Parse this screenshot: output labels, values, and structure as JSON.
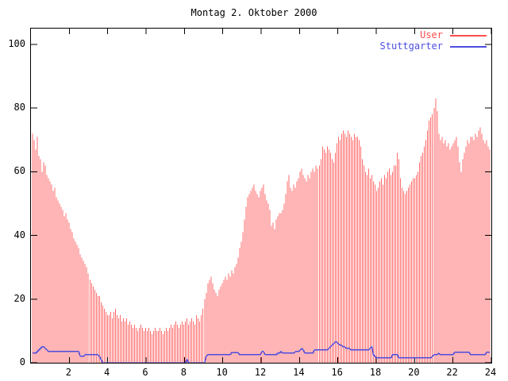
{
  "title": "Montag 2. Oktober 2000",
  "colors": {
    "background": "#ffffff",
    "axis": "#000000",
    "user_bar": "#ff6b6b",
    "user_legend": "#ff4d4d",
    "stuttgarter_line": "#4d4de0",
    "stuttgarter_legend": "#4d4de0",
    "text": "#000000"
  },
  "legend": {
    "position": "top-right",
    "entries": [
      {
        "label": "User",
        "color": "#ff4d4d"
      },
      {
        "label": "Stuttgarter",
        "color": "#4d4de0"
      }
    ]
  },
  "chart_data": {
    "type": "bar",
    "subtype": "impulses-with-line-overlay",
    "title": "Montag 2. Oktober 2000",
    "xlabel": "",
    "ylabel": "",
    "xlim": [
      0,
      24
    ],
    "ylim": [
      0,
      100
    ],
    "x_unit": "hour of day",
    "sample_interval_minutes": 5,
    "x_ticks": [
      2,
      4,
      6,
      8,
      10,
      12,
      14,
      16,
      18,
      20,
      22,
      24
    ],
    "y_ticks": [
      0,
      20,
      40,
      60,
      80,
      100
    ],
    "grid": false,
    "legend_position": "top-right",
    "series": [
      {
        "name": "User",
        "type": "impulse",
        "color": "#ff6b6b",
        "values": [
          72,
          70,
          67,
          71,
          65,
          64,
          60,
          63,
          62,
          59,
          58,
          57,
          56,
          54,
          55,
          52,
          51,
          50,
          49,
          48,
          46,
          47,
          45,
          44,
          42,
          41,
          39,
          38,
          37,
          36,
          34,
          33,
          32,
          31,
          30,
          28,
          26,
          25,
          24,
          23,
          22,
          21,
          21,
          19,
          18,
          17,
          16,
          15,
          15,
          16,
          14,
          16,
          17,
          15,
          14,
          15,
          13,
          14,
          13,
          14,
          12,
          13,
          12,
          11,
          12,
          11,
          10,
          11,
          12,
          11,
          10,
          11,
          10,
          11,
          10,
          9,
          10,
          11,
          10,
          10,
          11,
          10,
          9,
          10,
          11,
          10,
          11,
          12,
          11,
          12,
          13,
          12,
          11,
          12,
          13,
          12,
          13,
          14,
          12,
          13,
          14,
          13,
          12,
          15,
          14,
          13,
          15,
          17,
          20,
          22,
          25,
          26,
          27,
          25,
          23,
          22,
          21,
          23,
          24,
          25,
          26,
          27,
          26,
          28,
          27,
          29,
          28,
          30,
          31,
          33,
          36,
          38,
          41,
          45,
          49,
          52,
          53,
          54,
          55,
          56,
          54,
          53,
          52,
          54,
          55,
          56,
          53,
          51,
          50,
          48,
          43,
          44,
          42,
          45,
          46,
          47,
          47,
          48,
          50,
          53,
          57,
          59,
          55,
          54,
          56,
          55,
          57,
          58,
          60,
          61,
          59,
          58,
          57,
          59,
          58,
          60,
          61,
          60,
          62,
          61,
          62,
          64,
          68,
          67,
          66,
          68,
          67,
          66,
          64,
          63,
          66,
          69,
          71,
          70,
          72,
          73,
          72,
          71,
          73,
          72,
          71,
          70,
          72,
          71,
          71,
          70,
          68,
          64,
          62,
          60,
          59,
          61,
          58,
          59,
          57,
          56,
          54,
          55,
          57,
          58,
          56,
          59,
          58,
          60,
          61,
          59,
          60,
          62,
          62,
          66,
          64,
          58,
          55,
          54,
          53,
          54,
          55,
          56,
          57,
          58,
          58,
          59,
          60,
          63,
          65,
          66,
          68,
          70,
          73,
          76,
          77,
          78,
          80,
          83,
          79,
          72,
          70,
          71,
          69,
          70,
          68,
          69,
          67,
          68,
          69,
          70,
          71,
          68,
          63,
          60,
          64,
          66,
          68,
          70,
          69,
          71,
          71,
          70,
          72,
          71,
          73,
          74,
          72,
          70,
          69,
          70,
          68,
          67
        ]
      },
      {
        "name": "Stuttgarter",
        "type": "line",
        "color": "#4d4de0",
        "values": [
          3,
          3,
          3,
          3.5,
          4,
          4.5,
          5,
          5,
          4.5,
          4,
          3.5,
          3.5,
          3.5,
          3.5,
          3.5,
          3.5,
          3.5,
          3.5,
          3.5,
          3.5,
          3.5,
          3.5,
          3.5,
          3.5,
          3.5,
          3.5,
          3.5,
          3.5,
          3.5,
          3.5,
          2,
          2,
          2,
          2.5,
          2.5,
          2.5,
          2.5,
          2.5,
          2.5,
          2.5,
          2.5,
          2.5,
          2,
          1,
          0,
          0,
          0,
          0,
          0,
          0,
          0,
          0,
          0,
          0,
          0,
          0,
          0,
          0,
          0,
          0,
          0,
          0,
          0,
          0,
          0,
          0,
          0,
          0,
          0,
          0,
          0,
          0,
          0,
          0,
          0,
          0,
          0,
          0,
          0,
          0,
          0,
          0,
          0,
          0,
          0,
          0,
          0,
          0,
          0,
          0,
          0,
          0,
          0,
          0,
          0,
          0,
          0,
          1,
          0,
          0,
          0,
          0,
          0,
          0,
          0,
          0,
          0,
          0,
          0,
          2,
          2.5,
          2.5,
          2.5,
          2.5,
          2.5,
          2.5,
          2.5,
          2.5,
          2.5,
          2.5,
          2.5,
          2.5,
          2.5,
          2.5,
          2.5,
          3.2,
          3.2,
          3.2,
          3.2,
          3.2,
          2.5,
          2.5,
          2.5,
          2.5,
          2.5,
          2.5,
          2.5,
          2.5,
          2.5,
          2.5,
          2.5,
          2.5,
          2.5,
          2.5,
          3.5,
          3.5,
          2.5,
          2.5,
          2.5,
          2.5,
          2.5,
          2.5,
          2.5,
          2.5,
          3,
          3,
          3.5,
          3,
          3,
          3,
          3,
          3,
          3,
          3,
          3,
          3.5,
          3.5,
          3.5,
          4,
          4.5,
          4,
          3,
          3,
          3,
          3,
          3,
          3,
          4,
          4,
          4,
          4,
          4,
          4,
          4,
          4,
          4,
          4.5,
          5,
          5.5,
          6,
          6.5,
          6.5,
          6,
          5.5,
          5.5,
          5,
          5,
          4.5,
          4.5,
          4.5,
          4,
          4,
          4,
          4,
          4,
          4,
          4,
          4,
          4,
          4,
          4,
          4,
          4.5,
          5,
          2.5,
          2,
          1.5,
          1.5,
          1.5,
          1.5,
          1.5,
          1.5,
          1.5,
          1.5,
          1.5,
          1.5,
          2.5,
          2.5,
          2.5,
          2.5,
          1.5,
          1.5,
          1.5,
          1.5,
          1.5,
          1.5,
          1.5,
          1.5,
          1.5,
          1.5,
          1.5,
          1.5,
          1.5,
          1.5,
          1.5,
          1.5,
          1.5,
          1.5,
          1.5,
          1.5,
          1.5,
          2,
          2.5,
          2.5,
          2.5,
          3,
          2.5,
          2.5,
          2.5,
          2.5,
          2.5,
          2.5,
          2.5,
          2.5,
          2.5,
          3.3,
          3.3,
          3.3,
          3.3,
          3.3,
          3.3,
          3.3,
          3.3,
          3.3,
          3.3,
          2.5,
          2.5,
          2.5,
          2.5,
          2.5,
          2.5,
          2.5,
          2.5,
          2.5,
          2.5,
          3.3,
          3.3,
          3.3
        ]
      }
    ]
  }
}
